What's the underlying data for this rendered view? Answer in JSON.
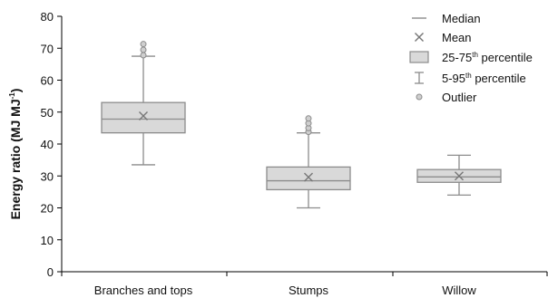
{
  "chart_data": {
    "type": "box",
    "ylabel": "Energy ratio (MJ MJ",
    "ylabel_sup": "-1",
    "ylabel_end": ")",
    "ylim": [
      0,
      80
    ],
    "yticks": [
      0,
      10,
      20,
      30,
      40,
      50,
      60,
      70,
      80
    ],
    "categories": [
      "Branches and tops",
      "Stumps",
      "Willow"
    ],
    "boxes": [
      {
        "category": "Branches and tops",
        "p5": 33.5,
        "q1": 43.5,
        "median": 47.8,
        "q3": 53.0,
        "p95": 67.5,
        "mean": 48.8,
        "outliers": [
          67.8,
          69.5,
          71.3
        ]
      },
      {
        "category": "Stumps",
        "p5": 20.0,
        "q1": 25.7,
        "median": 28.5,
        "q3": 32.8,
        "p95": 43.5,
        "mean": 29.6,
        "outliers": [
          43.8,
          45.0,
          46.5,
          48.0
        ]
      },
      {
        "category": "Willow",
        "p5": 24.0,
        "q1": 28.0,
        "median": 29.7,
        "q3": 32.0,
        "p95": 36.5,
        "mean": 30.0,
        "outliers": []
      }
    ],
    "legend": {
      "position": "top-right",
      "items": [
        {
          "key": "median",
          "label": "Median"
        },
        {
          "key": "mean",
          "label": "Mean"
        },
        {
          "key": "box",
          "label": "25-75",
          "sup": "th",
          "after": " percentile"
        },
        {
          "key": "whisker",
          "label": "5-95",
          "sup": "th",
          "after": " percentile"
        },
        {
          "key": "outlier",
          "label": "Outlier"
        }
      ]
    },
    "colors": {
      "box_fill": "#d9d9d9",
      "box_stroke": "#8c8c8c",
      "line": "#8c8c8c",
      "axis": "#000000"
    }
  }
}
